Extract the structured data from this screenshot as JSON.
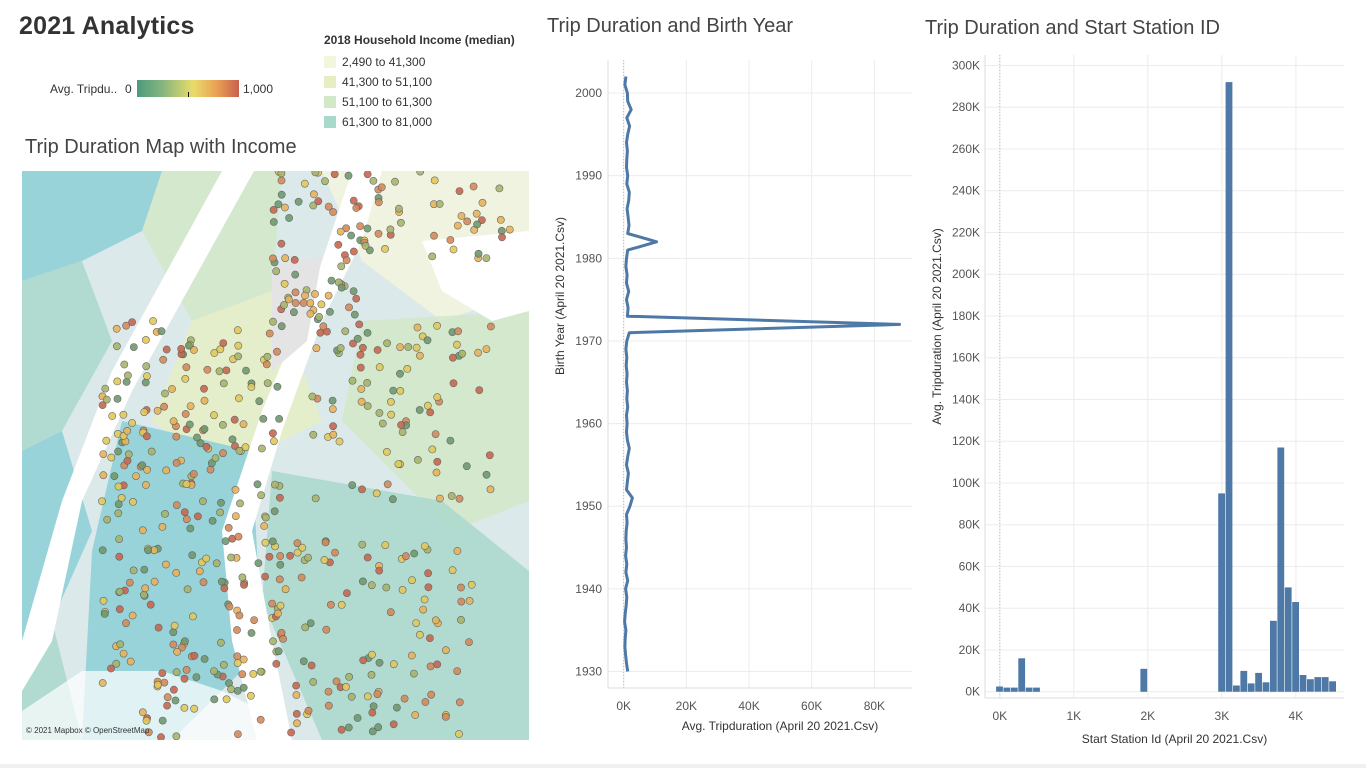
{
  "dashboard": {
    "title": "2021 Analytics"
  },
  "legend_income": {
    "title": "2018 Household Income (median)",
    "items": [
      {
        "label": "2,490 to 41,300",
        "color": "#f3f5dd"
      },
      {
        "label": "41,300 to 51,100",
        "color": "#e6efc4"
      },
      {
        "label": "51,100 to 61,300",
        "color": "#d2e8c9"
      },
      {
        "label": "61,300 to 81,000",
        "color": "#a9d8cd"
      },
      {
        "label": "",
        "color": "#8ccfd7"
      }
    ]
  },
  "legend_color": {
    "label": "Avg. Tripdu..",
    "min": "0",
    "max": "1,000",
    "colors": [
      "#4b9a7e",
      "#e8dc6a",
      "#c8604e"
    ]
  },
  "map": {
    "title": "Trip Duration Map with Income",
    "attribution": "© 2021 Mapbox © OpenStreetMap"
  },
  "chart_data": [
    {
      "type": "line",
      "title": "Trip Duration and Birth Year",
      "xlabel": "Avg. Tripduration (April 20 2021.Csv)",
      "ylabel": "Birth Year (April 20 2021.Csv)",
      "xlim": [
        -5000,
        92000
      ],
      "ylim": [
        1928,
        2004
      ],
      "x_ticks": [
        "0K",
        "20K",
        "40K",
        "60K",
        "80K"
      ],
      "x_tick_values": [
        0,
        20000,
        40000,
        60000,
        80000
      ],
      "y_ticks": [
        "1930",
        "1940",
        "1950",
        "1960",
        "1970",
        "1980",
        "1990",
        "2000"
      ],
      "y_tick_values": [
        1930,
        1940,
        1950,
        1960,
        1970,
        1980,
        1990,
        2000
      ],
      "grid": true,
      "series": [
        {
          "color": "#4e79a7",
          "points": [
            [
              1300,
              1930
            ],
            [
              900,
              1931
            ],
            [
              600,
              1932
            ],
            [
              400,
              1933
            ],
            [
              500,
              1934
            ],
            [
              700,
              1935
            ],
            [
              300,
              1936
            ],
            [
              500,
              1937
            ],
            [
              800,
              1938
            ],
            [
              1000,
              1939
            ],
            [
              600,
              1940
            ],
            [
              1300,
              1941
            ],
            [
              700,
              1942
            ],
            [
              1000,
              1943
            ],
            [
              600,
              1944
            ],
            [
              900,
              1945
            ],
            [
              700,
              1946
            ],
            [
              800,
              1947
            ],
            [
              1100,
              1948
            ],
            [
              900,
              1949
            ],
            [
              2000,
              1950
            ],
            [
              2800,
              1951
            ],
            [
              900,
              1952
            ],
            [
              1200,
              1953
            ],
            [
              1500,
              1954
            ],
            [
              900,
              1955
            ],
            [
              1300,
              1956
            ],
            [
              1800,
              1957
            ],
            [
              1200,
              1958
            ],
            [
              900,
              1959
            ],
            [
              1100,
              1960
            ],
            [
              900,
              1961
            ],
            [
              1300,
              1962
            ],
            [
              1000,
              1963
            ],
            [
              1200,
              1964
            ],
            [
              900,
              1965
            ],
            [
              1100,
              1966
            ],
            [
              800,
              1967
            ],
            [
              1000,
              1968
            ],
            [
              700,
              1969
            ],
            [
              1000,
              1970
            ],
            [
              1800,
              1971
            ],
            [
              88000,
              1972
            ],
            [
              1200,
              1973
            ],
            [
              1400,
              1974
            ],
            [
              900,
              1975
            ],
            [
              1600,
              1976
            ],
            [
              900,
              1977
            ],
            [
              1100,
              1978
            ],
            [
              700,
              1979
            ],
            [
              900,
              1980
            ],
            [
              1300,
              1981
            ],
            [
              10500,
              1982
            ],
            [
              1300,
              1983
            ],
            [
              1700,
              1984
            ],
            [
              1400,
              1985
            ],
            [
              1100,
              1986
            ],
            [
              1600,
              1987
            ],
            [
              1800,
              1988
            ],
            [
              1000,
              1989
            ],
            [
              1300,
              1990
            ],
            [
              900,
              1991
            ],
            [
              1000,
              1992
            ],
            [
              1200,
              1993
            ],
            [
              900,
              1994
            ],
            [
              1300,
              1995
            ],
            [
              1900,
              1996
            ],
            [
              1000,
              1997
            ],
            [
              2400,
              1998
            ],
            [
              1300,
              1999
            ],
            [
              1200,
              2000
            ],
            [
              400,
              2001
            ],
            [
              700,
              2002
            ]
          ]
        }
      ]
    },
    {
      "type": "bar",
      "title": "Trip Duration and Start Station ID",
      "xlabel": "Start Station Id (April 20 2021.Csv)",
      "ylabel": "Avg. Tripduration (April 20 2021.Csv)",
      "xlim": [
        -200,
        4650
      ],
      "ylim": [
        -3000,
        305000
      ],
      "x_ticks": [
        "0K",
        "1K",
        "2K",
        "3K",
        "4K"
      ],
      "x_tick_values": [
        0,
        1000,
        2000,
        3000,
        4000
      ],
      "y_ticks": [
        "0K",
        "20K",
        "40K",
        "60K",
        "80K",
        "100K",
        "120K",
        "140K",
        "160K",
        "180K",
        "200K",
        "220K",
        "240K",
        "260K",
        "280K",
        "300K"
      ],
      "y_tick_values": [
        0,
        20000,
        40000,
        60000,
        80000,
        100000,
        120000,
        140000,
        160000,
        180000,
        200000,
        220000,
        240000,
        260000,
        280000,
        300000
      ],
      "grid": true,
      "bar_width": 100,
      "series": [
        {
          "color": "#4e79a7",
          "bars": [
            {
              "x": 0,
              "value": 2500
            },
            {
              "x": 100,
              "value": 2000
            },
            {
              "x": 200,
              "value": 2000
            },
            {
              "x": 300,
              "value": 16000
            },
            {
              "x": 400,
              "value": 2000
            },
            {
              "x": 500,
              "value": 2000
            },
            {
              "x": 1950,
              "value": 11000
            },
            {
              "x": 3000,
              "value": 95000
            },
            {
              "x": 3100,
              "value": 292000
            },
            {
              "x": 3200,
              "value": 3000
            },
            {
              "x": 3300,
              "value": 10000
            },
            {
              "x": 3400,
              "value": 4000
            },
            {
              "x": 3500,
              "value": 9000
            },
            {
              "x": 3600,
              "value": 4500
            },
            {
              "x": 3700,
              "value": 34000
            },
            {
              "x": 3800,
              "value": 117000
            },
            {
              "x": 3900,
              "value": 50000
            },
            {
              "x": 4000,
              "value": 43000
            },
            {
              "x": 4100,
              "value": 8000
            },
            {
              "x": 4200,
              "value": 6000
            },
            {
              "x": 4300,
              "value": 7000
            },
            {
              "x": 4400,
              "value": 7000
            },
            {
              "x": 4500,
              "value": 5000
            }
          ]
        }
      ]
    }
  ]
}
